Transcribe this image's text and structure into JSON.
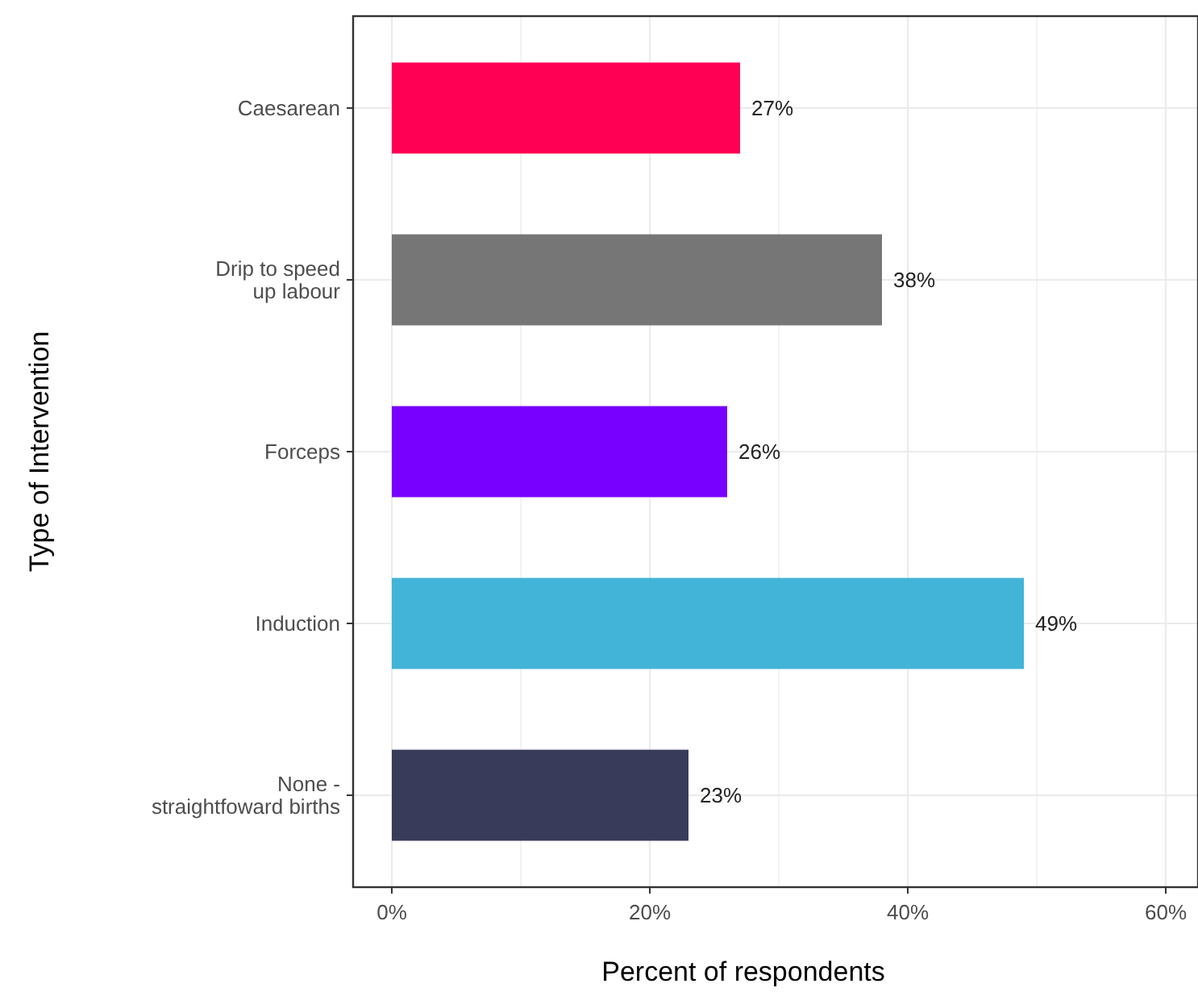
{
  "chart_data": {
    "type": "bar",
    "orientation": "horizontal",
    "xlabel": "Percent of respondents",
    "ylabel": "Type of Intervention",
    "categories": [
      "Caesarean",
      "Drip to speed\nup labour",
      "Forceps",
      "Induction",
      "None -\nstraightfoward births"
    ],
    "values": [
      27,
      38,
      26,
      49,
      23
    ],
    "colors": [
      "#ff0055",
      "#767676",
      "#7700ff",
      "#42b4d8",
      "#383c5a"
    ],
    "value_labels": [
      "27%",
      "38%",
      "26%",
      "49%",
      "23%"
    ],
    "xlim": [
      -3,
      62.5
    ],
    "xticks": [
      {
        "value": 0,
        "label": "0%"
      },
      {
        "value": 10,
        "label": null
      },
      {
        "value": 20,
        "label": "20%"
      },
      {
        "value": 30,
        "label": null
      },
      {
        "value": 40,
        "label": "40%"
      },
      {
        "value": 50,
        "label": null
      },
      {
        "value": 60,
        "label": "60%"
      }
    ],
    "grid": true
  }
}
